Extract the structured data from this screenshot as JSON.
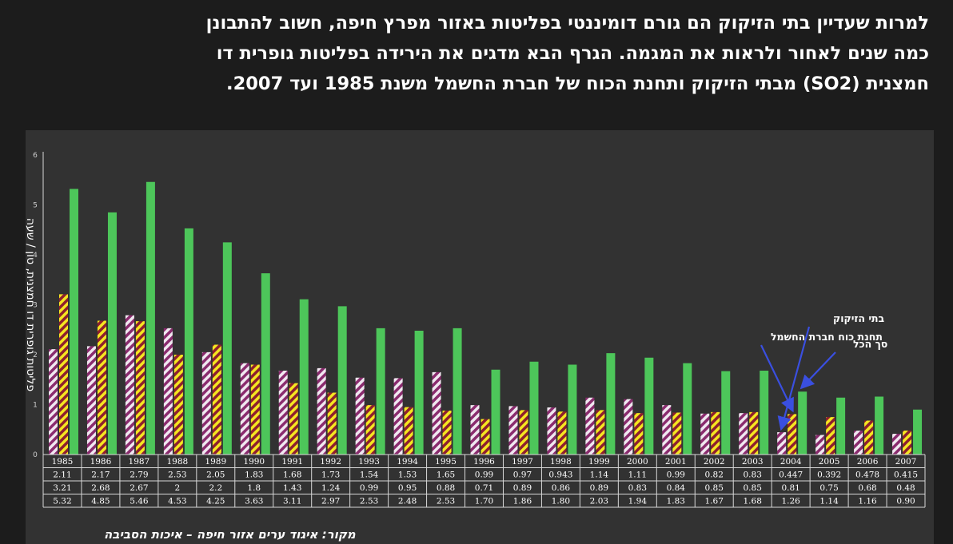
{
  "intro_lines": [
    "למרות שעדיין בתי הזיקוק הם גורם דומיננטי בפליטות באזור מפרץ חיפה, חשוב להתבונן",
    "כמה שנים לאחור ולראות את המגמה. הגרף הבא מדגים את הירידה בפליטות גופרית דו",
    "חמצנית (SO2) מבתי הזיקוק ותחנת הכוח של חברת החשמל משנת 1985 ועד 2007."
  ],
  "source_note": "מקור: איגוד ערים אזור חיפה – איכות הסביבה",
  "colors": {
    "refineries_a": "#f0e8f0",
    "refineries_b": "#8a2b6e",
    "power_a": "#f5e620",
    "power_b": "#8e1f2e",
    "total": "#4dc65a",
    "annotation": "#3a4fe0"
  },
  "chart_data": {
    "type": "bar",
    "ylabel": "פליטות גופרית דו חמצנית, טון / שעה",
    "ylim": [
      0,
      6
    ],
    "yticks": [
      "0",
      "1",
      "2",
      "3",
      "4",
      "5",
      "6"
    ],
    "categories": [
      "1985",
      "1986",
      "1987",
      "1988",
      "1989",
      "1990",
      "1991",
      "1992",
      "1993",
      "1994",
      "1995",
      "1996",
      "1997",
      "1998",
      "1999",
      "2000",
      "2001",
      "2002",
      "2003",
      "2004",
      "2005",
      "2006",
      "2007"
    ],
    "series": [
      {
        "name": "בתי הזיקוק",
        "values": [
          2.11,
          2.17,
          2.79,
          2.53,
          2.05,
          1.83,
          1.68,
          1.73,
          1.54,
          1.53,
          1.65,
          0.99,
          0.97,
          0.943,
          1.14,
          1.11,
          0.99,
          0.82,
          0.83,
          0.447,
          0.392,
          0.478,
          0.415
        ]
      },
      {
        "name": "תחנת כוח חברת החשמל",
        "values": [
          3.21,
          2.68,
          2.67,
          2,
          2.2,
          1.8,
          1.43,
          1.24,
          0.99,
          0.95,
          0.88,
          0.71,
          0.89,
          0.86,
          0.89,
          0.83,
          0.84,
          0.85,
          0.85,
          0.81,
          0.75,
          0.68,
          0.48
        ]
      },
      {
        "name": "סך הכל",
        "values": [
          5.32,
          4.85,
          5.46,
          4.53,
          4.25,
          3.63,
          3.11,
          2.97,
          2.53,
          2.48,
          2.53,
          1.7,
          1.86,
          1.8,
          2.03,
          1.94,
          1.83,
          1.67,
          1.68,
          1.26,
          1.14,
          1.16,
          0.9
        ]
      }
    ],
    "table_rows": [
      [
        "2.11",
        "2.17",
        "2.79",
        "2.53",
        "2.05",
        "1.83",
        "1.68",
        "1.73",
        "1.54",
        "1.53",
        "1.65",
        "0.99",
        "0.97",
        "0.943",
        "1.14",
        "1.11",
        "0.99",
        "0.82",
        "0.83",
        "0.447",
        "0.392",
        "0.478",
        "0.415"
      ],
      [
        "3.21",
        "2.68",
        "2.67",
        "2",
        "2.2",
        "1.8",
        "1.43",
        "1.24",
        "0.99",
        "0.95",
        "0.88",
        "0.71",
        "0.89",
        "0.86",
        "0.89",
        "0.83",
        "0.84",
        "0.85",
        "0.85",
        "0.81",
        "0.75",
        "0.68",
        "0.48"
      ],
      [
        "5.32",
        "4.85",
        "5.46",
        "4.53",
        "4.25",
        "3.63",
        "3.11",
        "2.97",
        "2.53",
        "2.48",
        "2.53",
        "1.70",
        "1.86",
        "1.80",
        "2.03",
        "1.94",
        "1.83",
        "1.67",
        "1.68",
        "1.26",
        "1.14",
        "1.16",
        "0.90"
      ]
    ],
    "annotations": [
      {
        "text": "בתי הזיקוק",
        "series_index": 0,
        "category": "2004"
      },
      {
        "text": "תחנת כוח חברת החשמל",
        "series_index": 1,
        "category": "2004"
      },
      {
        "text": "סך הכל",
        "series_index": 2,
        "category": "2004"
      }
    ],
    "grid": false,
    "legend": "none"
  }
}
